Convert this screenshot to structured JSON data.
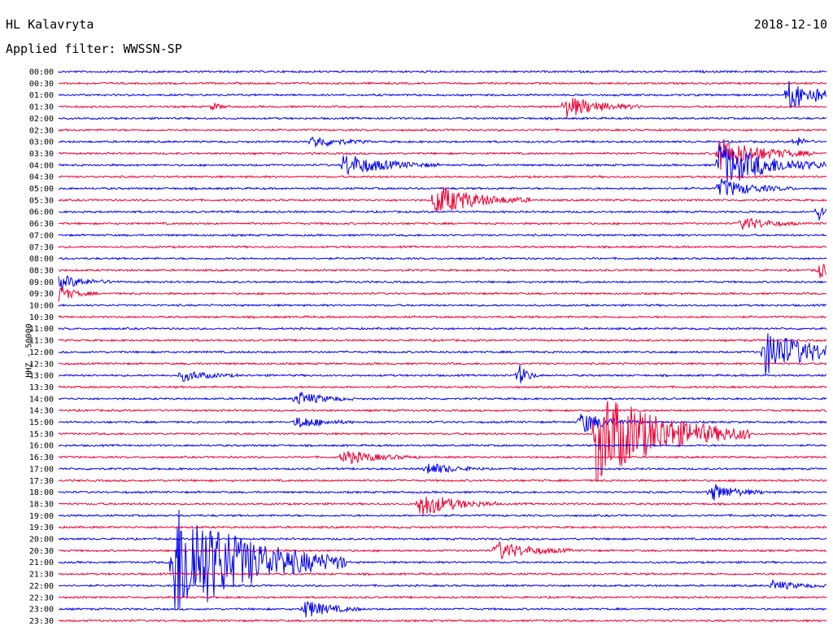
{
  "header": {
    "station": "HL Kalavryta",
    "date": "2018-12-10",
    "filter": "Applied filter: WWSSN-SP"
  },
  "channel_label": "HHZ - 50000",
  "colors": {
    "blue": "#0000ee",
    "red": "#ee0033"
  },
  "rows": [
    "00:00",
    "00:30",
    "01:00",
    "01:30",
    "02:00",
    "02:30",
    "03:00",
    "03:30",
    "04:00",
    "04:30",
    "05:00",
    "05:30",
    "06:00",
    "06:30",
    "07:00",
    "07:30",
    "08:00",
    "08:30",
    "09:00",
    "09:30",
    "10:00",
    "10:30",
    "11:00",
    "11:30",
    "12:00",
    "12:30",
    "13:00",
    "13:30",
    "14:00",
    "14:30",
    "15:00",
    "15:30",
    "16:00",
    "16:30",
    "17:00",
    "17:30",
    "18:00",
    "18:30",
    "19:00",
    "19:30",
    "20:00",
    "20:30",
    "21:00",
    "21:30",
    "22:00",
    "22:30",
    "23:00",
    "23:30"
  ],
  "events": [
    {
      "row": 2,
      "t": 0.95,
      "amp": 18,
      "dur": 0.04
    },
    {
      "row": 3,
      "t": 0.66,
      "amp": 14,
      "dur": 0.04
    },
    {
      "row": 3,
      "t": 0.2,
      "amp": 5,
      "dur": 0.01
    },
    {
      "row": 6,
      "t": 0.33,
      "amp": 8,
      "dur": 0.03
    },
    {
      "row": 6,
      "t": 0.96,
      "amp": 7,
      "dur": 0.01
    },
    {
      "row": 7,
      "t": 0.86,
      "amp": 20,
      "dur": 0.05
    },
    {
      "row": 8,
      "t": 0.37,
      "amp": 14,
      "dur": 0.05
    },
    {
      "row": 8,
      "t": 0.86,
      "amp": 28,
      "dur": 0.06
    },
    {
      "row": 10,
      "t": 0.86,
      "amp": 12,
      "dur": 0.04
    },
    {
      "row": 11,
      "t": 0.49,
      "amp": 20,
      "dur": 0.05
    },
    {
      "row": 12,
      "t": 0.99,
      "amp": 10,
      "dur": 0.01
    },
    {
      "row": 13,
      "t": 0.89,
      "amp": 9,
      "dur": 0.03
    },
    {
      "row": 17,
      "t": 0.99,
      "amp": 9,
      "dur": 0.02
    },
    {
      "row": 18,
      "t": 0.0,
      "amp": 9,
      "dur": 0.03
    },
    {
      "row": 19,
      "t": 0.0,
      "amp": 9,
      "dur": 0.02
    },
    {
      "row": 24,
      "t": 0.92,
      "amp": 28,
      "dur": 0.06
    },
    {
      "row": 26,
      "t": 0.6,
      "amp": 14,
      "dur": 0.01
    },
    {
      "row": 26,
      "t": 0.16,
      "amp": 7,
      "dur": 0.03
    },
    {
      "row": 28,
      "t": 0.31,
      "amp": 9,
      "dur": 0.03
    },
    {
      "row": 30,
      "t": 0.68,
      "amp": 14,
      "dur": 0.03
    },
    {
      "row": 30,
      "t": 0.31,
      "amp": 8,
      "dur": 0.03
    },
    {
      "row": 31,
      "t": 0.7,
      "amp": 60,
      "dur": 0.08
    },
    {
      "row": 33,
      "t": 0.37,
      "amp": 9,
      "dur": 0.04
    },
    {
      "row": 34,
      "t": 0.48,
      "amp": 8,
      "dur": 0.03
    },
    {
      "row": 36,
      "t": 0.85,
      "amp": 11,
      "dur": 0.03
    },
    {
      "row": 37,
      "t": 0.47,
      "amp": 16,
      "dur": 0.04
    },
    {
      "row": 41,
      "t": 0.57,
      "amp": 12,
      "dur": 0.04
    },
    {
      "row": 42,
      "t": 0.15,
      "amp": 80,
      "dur": 0.09
    },
    {
      "row": 46,
      "t": 0.32,
      "amp": 12,
      "dur": 0.03
    },
    {
      "row": 44,
      "t": 0.93,
      "amp": 6,
      "dur": 0.03
    }
  ]
}
